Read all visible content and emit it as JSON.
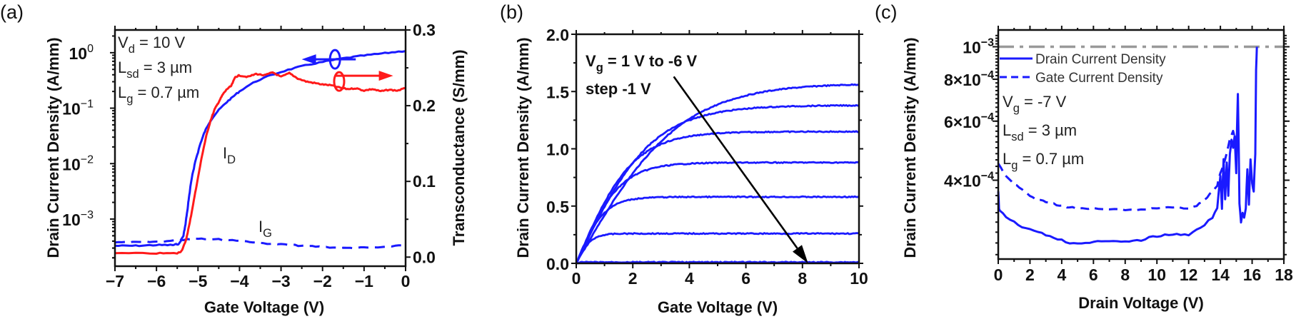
{
  "chart_data": [
    {
      "panel": "(a)",
      "type": "line",
      "xlabel": "Gate Voltage (V)",
      "ylabel": "Drain Current Density (A/mm)",
      "y2label": "Transconductance (S/mm)",
      "xlim": [
        -7,
        0
      ],
      "ylim_log10": [
        -3.85,
        0.41
      ],
      "y2lim": [
        -0.012,
        0.3
      ],
      "xticks": [
        -7,
        -6,
        -5,
        -4,
        -3,
        -2,
        -1,
        0
      ],
      "xtick_labels": [
        "−7",
        "−6",
        "−5",
        "−4",
        "−3",
        "−2",
        "−1",
        "0"
      ],
      "yticks_log10": [
        0,
        -1,
        -2,
        -3
      ],
      "ytick_labels": [
        "10",
        "10",
        "10",
        "10"
      ],
      "ytick_exponents": [
        "0",
        "−1",
        "−2",
        "−3"
      ],
      "y2ticks": [
        0.0,
        0.1,
        0.2,
        0.3
      ],
      "y2tick_labels": [
        "0.0",
        "0.1",
        "0.2",
        "0.3"
      ],
      "annotations": [
        {
          "main": "V",
          "sub": "d",
          "rest": " = 10 V"
        },
        {
          "main": "L",
          "sub": "sd",
          "rest": " = 3 µm"
        },
        {
          "main": "L",
          "sub": "g",
          "rest": " = 0.7 µm"
        }
      ],
      "curve_labels": [
        {
          "main": "I",
          "sub": "D",
          "color": "#1a1aff"
        },
        {
          "main": "I",
          "sub": "G",
          "color": "#1a1aff"
        }
      ],
      "series": [
        {
          "name": "I_D (drain current density)",
          "axis": "left",
          "style": "solid",
          "color": "#1a1aff",
          "x": [
            -7,
            -6.5,
            -6,
            -5.6,
            -5.45,
            -5.35,
            -5.3,
            -5.25,
            -5.2,
            -5.1,
            -5.0,
            -4.9,
            -4.8,
            -4.6,
            -4.4,
            -4.2,
            -4.0,
            -3.5,
            -3.0,
            -2.5,
            -2.0,
            -1.5,
            -1.0,
            -0.5,
            0
          ],
          "y": [
            0.00033,
            0.00033,
            0.00034,
            0.00034,
            0.00036,
            0.0005,
            0.0008,
            0.0015,
            0.003,
            0.008,
            0.016,
            0.028,
            0.043,
            0.075,
            0.11,
            0.15,
            0.2,
            0.33,
            0.45,
            0.57,
            0.68,
            0.79,
            0.89,
            0.98,
            1.08
          ]
        },
        {
          "name": "I_G (gate current density)",
          "axis": "left",
          "style": "dashed",
          "color": "#1a1aff",
          "x": [
            -7,
            -6.5,
            -6,
            -5.5,
            -5.2,
            -5.0,
            -4.5,
            -4.0,
            -3.5,
            -3.0,
            -2.5,
            -2.0,
            -1.5,
            -1.0,
            -0.5,
            0
          ],
          "y": [
            0.00038,
            0.00038,
            0.00039,
            0.00041,
            0.00044,
            0.00045,
            0.00043,
            0.00041,
            0.00037,
            0.00035,
            0.00033,
            0.000315,
            0.0003,
            0.000305,
            0.00031,
            0.00035
          ]
        },
        {
          "name": "gm (transconductance)",
          "axis": "right",
          "style": "solid",
          "color": "#ff1a1a",
          "x": [
            -7,
            -6,
            -5.5,
            -5.4,
            -5.3,
            -5.2,
            -5.1,
            -5.0,
            -4.9,
            -4.8,
            -4.7,
            -4.6,
            -4.5,
            -4.4,
            -4.3,
            -4.2,
            -4.1,
            -4.0,
            -3.8,
            -3.6,
            -3.4,
            -3.2,
            -3.0,
            -2.8,
            -2.6,
            -2.4,
            -2.2,
            -2.0,
            -1.8,
            -1.6,
            -1.4,
            -1.2,
            -1.0,
            -0.8,
            -0.6,
            -0.4,
            -0.2,
            0
          ],
          "y": [
            0.005,
            0.005,
            0.005,
            0.008,
            0.02,
            0.045,
            0.075,
            0.105,
            0.135,
            0.16,
            0.18,
            0.195,
            0.205,
            0.215,
            0.222,
            0.226,
            0.238,
            0.24,
            0.238,
            0.242,
            0.24,
            0.244,
            0.238,
            0.243,
            0.236,
            0.232,
            0.23,
            0.228,
            0.227,
            0.224,
            0.222,
            0.223,
            0.22,
            0.222,
            0.219,
            0.221,
            0.22,
            0.223
          ]
        }
      ],
      "arrows": [
        {
          "direction": "left",
          "color": "#1a1aff",
          "from_x": -1.2,
          "to_x": -2.5,
          "y": 0.76,
          "circle_x": -1.7
        },
        {
          "direction": "right",
          "color": "#ff1a1a",
          "from_x": -1.7,
          "to_x": -0.3,
          "y2": 0.232,
          "circle_x": -1.6
        }
      ]
    },
    {
      "panel": "(b)",
      "type": "line",
      "xlabel": "Gate Voltage (V)",
      "ylabel": "Drain Current Density (A/mm)",
      "xlim": [
        0,
        10
      ],
      "ylim": [
        0,
        2.0
      ],
      "xticks": [
        0,
        2,
        4,
        6,
        8,
        10
      ],
      "xtick_labels": [
        "0",
        "2",
        "4",
        "6",
        "8",
        "10"
      ],
      "yticks": [
        0.0,
        0.5,
        1.0,
        1.5,
        2.0
      ],
      "ytick_labels": [
        "0.0",
        "0.5",
        "1.0",
        "1.5",
        "2.0"
      ],
      "annotation_line1": {
        "main": "V",
        "sub": "g",
        "rest": " = 1 V to -6 V"
      },
      "annotation_line2": "step -1 V",
      "arrow": {
        "from": [
          3.45,
          1.63
        ],
        "to": [
          8.2,
          0.0
        ],
        "color": "#000000"
      },
      "series": [
        {
          "name": "Vg = 1 V",
          "color": "#1a1aff",
          "i_sat": 1.58,
          "v_knee": 5.5
        },
        {
          "name": "Vg = 0 V",
          "color": "#1a1aff",
          "i_sat": 1.38,
          "v_knee": 4.0
        },
        {
          "name": "Vg = -1 V",
          "color": "#1a1aff",
          "i_sat": 1.15,
          "v_knee": 3.0
        },
        {
          "name": "Vg = -2 V",
          "color": "#1a1aff",
          "i_sat": 0.88,
          "v_knee": 2.3
        },
        {
          "name": "Vg = -3 V",
          "color": "#1a1aff",
          "i_sat": 0.58,
          "v_knee": 1.5
        },
        {
          "name": "Vg = -4 V",
          "color": "#1a1aff",
          "i_sat": 0.26,
          "v_knee": 0.8
        },
        {
          "name": "Vg = -5 V / -6 V",
          "color": "#1a1aff",
          "i_sat": 0.01,
          "v_knee": 0.2
        }
      ]
    },
    {
      "panel": "(c)",
      "type": "line",
      "xlabel": "Drain Voltage (V)",
      "ylabel": "Drain Current Density (A/mm)",
      "xlim": [
        0,
        18
      ],
      "ylim_log10": [
        -3.633,
        -2.95
      ],
      "xticks": [
        0,
        2,
        4,
        6,
        8,
        10,
        12,
        14,
        16,
        18
      ],
      "xtick_labels": [
        "0",
        "2",
        "4",
        "6",
        "8",
        "10",
        "12",
        "14",
        "16",
        "18"
      ],
      "yticks": [
        0.001,
        0.0008,
        0.0006,
        0.0004
      ],
      "ytick_labels": [
        {
          "mant": "10",
          "exp": "−3"
        },
        {
          "mant": "8×10",
          "exp": "−4"
        },
        {
          "mant": "6×10",
          "exp": "−4"
        },
        {
          "mant": "4×10",
          "exp": "−4"
        }
      ],
      "reference_line": {
        "value": 0.001,
        "style": "dash-dot",
        "color": "#999999"
      },
      "legend": [
        {
          "label": "Drain Current Density",
          "style": "solid",
          "color": "#1a1aff"
        },
        {
          "label": "Gate Current Density",
          "style": "dashed",
          "color": "#1a1aff"
        }
      ],
      "annotations": [
        {
          "main": "V",
          "sub": "g",
          "rest": " = -7 V"
        },
        {
          "main": "L",
          "sub": "sd",
          "rest": " = 3 µm"
        },
        {
          "main": "L",
          "sub": "g",
          "rest": " = 0.7 µm"
        }
      ],
      "series": [
        {
          "name": "Drain Current Density",
          "style": "solid",
          "color": "#1a1aff",
          "x": [
            0,
            0.05,
            0.1,
            0.5,
            1,
            1.5,
            2,
            2.5,
            3,
            3.5,
            4,
            4.5,
            5,
            5.5,
            6,
            6.5,
            7,
            7.5,
            8,
            8.5,
            9,
            9.5,
            10,
            10.5,
            11,
            11.5,
            12,
            12.5,
            13,
            13.5,
            13.8,
            14.0,
            14.1,
            14.2,
            14.3,
            14.4,
            14.5,
            14.6,
            14.7,
            14.8,
            14.9,
            15.0,
            15.1,
            15.15,
            15.2,
            15.3,
            15.4,
            15.5,
            15.6,
            15.7,
            15.8,
            15.9,
            16.0,
            16.1,
            16.2,
            16.25,
            16.3
          ],
          "y": [
            0.00037,
            0.00033,
            0.000325,
            0.00031,
            0.0003,
            0.00029,
            0.000285,
            0.00028,
            0.000275,
            0.00027,
            0.000265,
            0.00026,
            0.00026,
            0.00026,
            0.000262,
            0.000263,
            0.000262,
            0.000263,
            0.000262,
            0.000263,
            0.000265,
            0.00027,
            0.000272,
            0.000275,
            0.000276,
            0.000275,
            0.000275,
            0.000285,
            0.000295,
            0.00031,
            0.00033,
            0.00041,
            0.00033,
            0.00046,
            0.00035,
            0.00045,
            0.00036,
            0.00048,
            0.00053,
            0.0005,
            0.00054,
            0.00042,
            0.00072,
            0.00052,
            0.00034,
            0.0003,
            0.00032,
            0.00031,
            0.00033,
            0.00043,
            0.00034,
            0.00046,
            0.00039,
            0.00037,
            0.00048,
            0.00085,
            0.001
          ]
        },
        {
          "name": "Gate Current Density",
          "style": "dashed",
          "color": "#1a1aff",
          "x": [
            0,
            0.5,
            1,
            1.5,
            2,
            2.5,
            3,
            3.5,
            4,
            4.5,
            5,
            6,
            7,
            8,
            9,
            10,
            11,
            12,
            12.5,
            13,
            13.5,
            13.8,
            14.0,
            14.3,
            14.6,
            14.8,
            15.0
          ],
          "y": [
            0.00045,
            0.00041,
            0.00039,
            0.000375,
            0.00036,
            0.00035,
            0.000345,
            0.00034,
            0.000335,
            0.000332,
            0.00033,
            0.00033,
            0.000328,
            0.000327,
            0.000327,
            0.00033,
            0.000333,
            0.00033,
            0.000335,
            0.00035,
            0.00037,
            0.000385,
            0.00042,
            0.00046,
            0.00053,
            0.00056,
            0.00051
          ]
        }
      ]
    }
  ],
  "panels": {
    "a": {
      "label": "(a)"
    },
    "b": {
      "label": "(b)"
    },
    "c": {
      "label": "(c)"
    }
  }
}
